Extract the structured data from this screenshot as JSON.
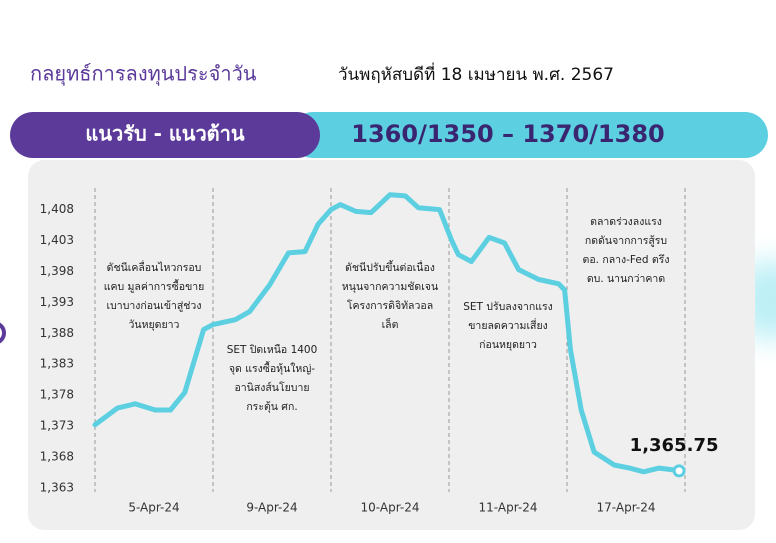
{
  "header": {
    "title": "กลยุทธ์การลงทุนประจำวัน",
    "date": "วันพฤหัสบดีที่ 18 เมษายน พ.ศ. 2567"
  },
  "banner": {
    "label": "แนวรับ - แนวต้าน",
    "levels": "1360/1350  –  1370/1380"
  },
  "chart_data": {
    "type": "line",
    "x": [
      0,
      0.19,
      0.34,
      0.51,
      0.64,
      0.76,
      0.92,
      1.0,
      1.19,
      1.31,
      1.48,
      1.64,
      1.78,
      1.89,
      2.0,
      2.08,
      2.21,
      2.34,
      2.5,
      2.63,
      2.74,
      2.92,
      3.02,
      3.08,
      3.19,
      3.34,
      3.47,
      3.59,
      3.76,
      3.93,
      3.98,
      4.03,
      4.12,
      4.23,
      4.4,
      4.53,
      4.65,
      4.78,
      4.91,
      4.95
    ],
    "series": [
      {
        "color": "#5ccfe0",
        "values": [
          1373.2,
          1375.9,
          1376.6,
          1375.6,
          1375.6,
          1378.4,
          1388.6,
          1389.4,
          1390.2,
          1391.5,
          1395.8,
          1401,
          1401.2,
          1405.6,
          1408,
          1408.8,
          1407.7,
          1407.5,
          1410.4,
          1410.2,
          1408.3,
          1408,
          1403.1,
          1400.7,
          1399.6,
          1403.5,
          1402.6,
          1398.3,
          1396.7,
          1396,
          1395,
          1385.3,
          1375.6,
          1368.8,
          1366.7,
          1366.2,
          1365.6,
          1366.2,
          1365.9,
          1365.75
        ],
        "value_labels": [
          null,
          null,
          null,
          null,
          null,
          null,
          null,
          null,
          null,
          null,
          null,
          null,
          null,
          null,
          null,
          null,
          null,
          null,
          null,
          null,
          null,
          null,
          null,
          null,
          null,
          null,
          null,
          null,
          null,
          null,
          null,
          null,
          null,
          null,
          null,
          null,
          null,
          null,
          null,
          "1,365.75"
        ]
      }
    ],
    "xlim": [
      0,
      5
    ],
    "xticks": [
      {
        "value": 0.5,
        "label": "5-Apr-24"
      },
      {
        "value": 1.5,
        "label": "9-Apr-24"
      },
      {
        "value": 2.5,
        "label": "10-Apr-24"
      },
      {
        "value": 3.5,
        "label": "11-Apr-24"
      },
      {
        "value": 4.5,
        "label": "17-Apr-24"
      }
    ],
    "ylim": [
      1362.5,
      1411
    ],
    "yticks": [
      {
        "value": 1363,
        "label": "1,363"
      },
      {
        "value": 1368,
        "label": "1,368"
      },
      {
        "value": 1373,
        "label": "1,373"
      },
      {
        "value": 1378,
        "label": "1,378"
      },
      {
        "value": 1383,
        "label": "1,383"
      },
      {
        "value": 1388,
        "label": "1,388"
      },
      {
        "value": 1393,
        "label": "1,393"
      },
      {
        "value": 1398,
        "label": "1,398"
      },
      {
        "value": 1403,
        "label": "1,403"
      },
      {
        "value": 1408,
        "label": "1,408"
      }
    ],
    "annotations": [
      [
        "ดัชนีเคลื่อนไหวกรอบ",
        "แคบ มูลค่าการซื้อขาย",
        "เบาบางก่อนเข้าสู่ช่วง",
        "วันหยุดยาว"
      ],
      [
        "SET ปิดเหนือ 1400",
        "จุด แรงซื้อหุ้นใหญ่-",
        "อานิสงส์นโยบาย",
        "กระตุ้น ศก."
      ],
      [
        "ดัชนีปรับขึ้นต่อเนื่อง",
        "หนุนจากความชัดเจน",
        "โครงการดิจิทัลวอล",
        "เล็ต"
      ],
      [
        "SET ปรับลงจากแรง",
        "ขายลดความเสี่ยง",
        "ก่อนหยุดยาว"
      ],
      [
        "ตลาดร่วงลงแรง",
        "กดดันจากการสู้รบ",
        "ตอ. กลาง-Fed ตรึง",
        "ดบ. นานกว่าคาด"
      ]
    ]
  }
}
